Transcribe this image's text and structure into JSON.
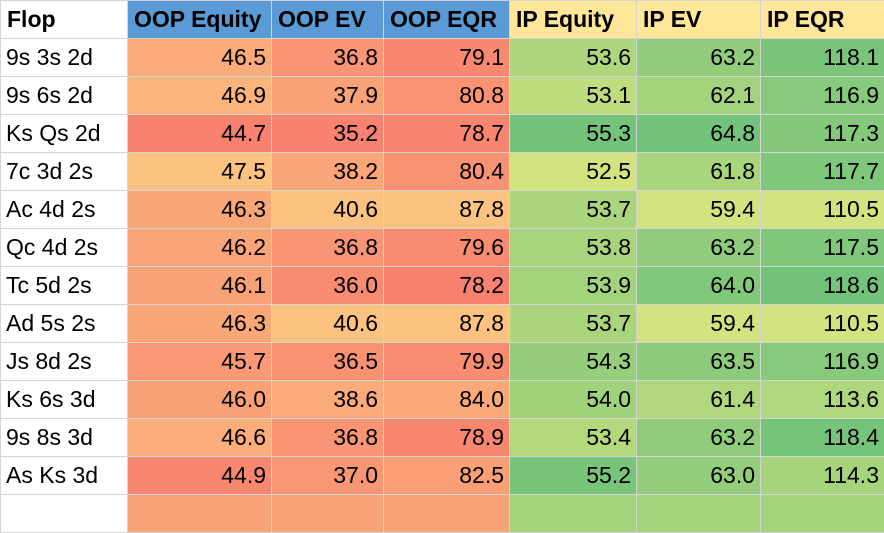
{
  "sheet": {
    "headers": [
      "Flop",
      "OOP Equity",
      "OOP EV",
      "OOP EQR",
      "IP Equity",
      "IP EV",
      "IP EQR"
    ],
    "header_colors": [
      "#ffffff",
      "#5b9bd5",
      "#5b9bd5",
      "#5b9bd5",
      "#ffe699",
      "#ffe699",
      "#ffe699"
    ],
    "rows": [
      [
        "9s 3s 2d",
        "46.5",
        "36.8",
        "79.1",
        "53.6",
        "63.2",
        "118.1"
      ],
      [
        "9s 6s 2d",
        "46.9",
        "37.9",
        "80.8",
        "53.1",
        "62.1",
        "116.9"
      ],
      [
        "Ks Qs 2d",
        "44.7",
        "35.2",
        "78.7",
        "55.3",
        "64.8",
        "117.3"
      ],
      [
        "7c 3d 2s",
        "47.5",
        "38.2",
        "80.4",
        "52.5",
        "61.8",
        "117.7"
      ],
      [
        "Ac 4d 2s",
        "46.3",
        "40.6",
        "87.8",
        "53.7",
        "59.4",
        "110.5"
      ],
      [
        "Qc 4d 2s",
        "46.2",
        "36.8",
        "79.6",
        "53.8",
        "63.2",
        "117.5"
      ],
      [
        "Tc 5d 2s",
        "46.1",
        "36.0",
        "78.2",
        "53.9",
        "64.0",
        "118.6"
      ],
      [
        "Ad 5s 2s",
        "46.3",
        "40.6",
        "87.8",
        "53.7",
        "59.4",
        "110.5"
      ],
      [
        "Js 8d 2s",
        "45.7",
        "36.5",
        "79.9",
        "54.3",
        "63.5",
        "116.9"
      ],
      [
        "Ks 6s 3d",
        "46.0",
        "38.6",
        "84.0",
        "54.0",
        "61.4",
        "113.6"
      ],
      [
        "9s 8s 3d",
        "46.6",
        "36.8",
        "78.9",
        "53.4",
        "63.2",
        "118.4"
      ],
      [
        "As Ks 3d",
        "44.9",
        "37.0",
        "82.5",
        "55.2",
        "63.0",
        "114.3"
      ],
      [
        "",
        "",
        "",
        "",
        "",
        "",
        ""
      ]
    ],
    "scale_colors": {
      "oop_low": "#f8826f",
      "oop_high": "#fcc27f",
      "ip_low": "#d3e37f",
      "ip_high": "#74c37a"
    }
  }
}
